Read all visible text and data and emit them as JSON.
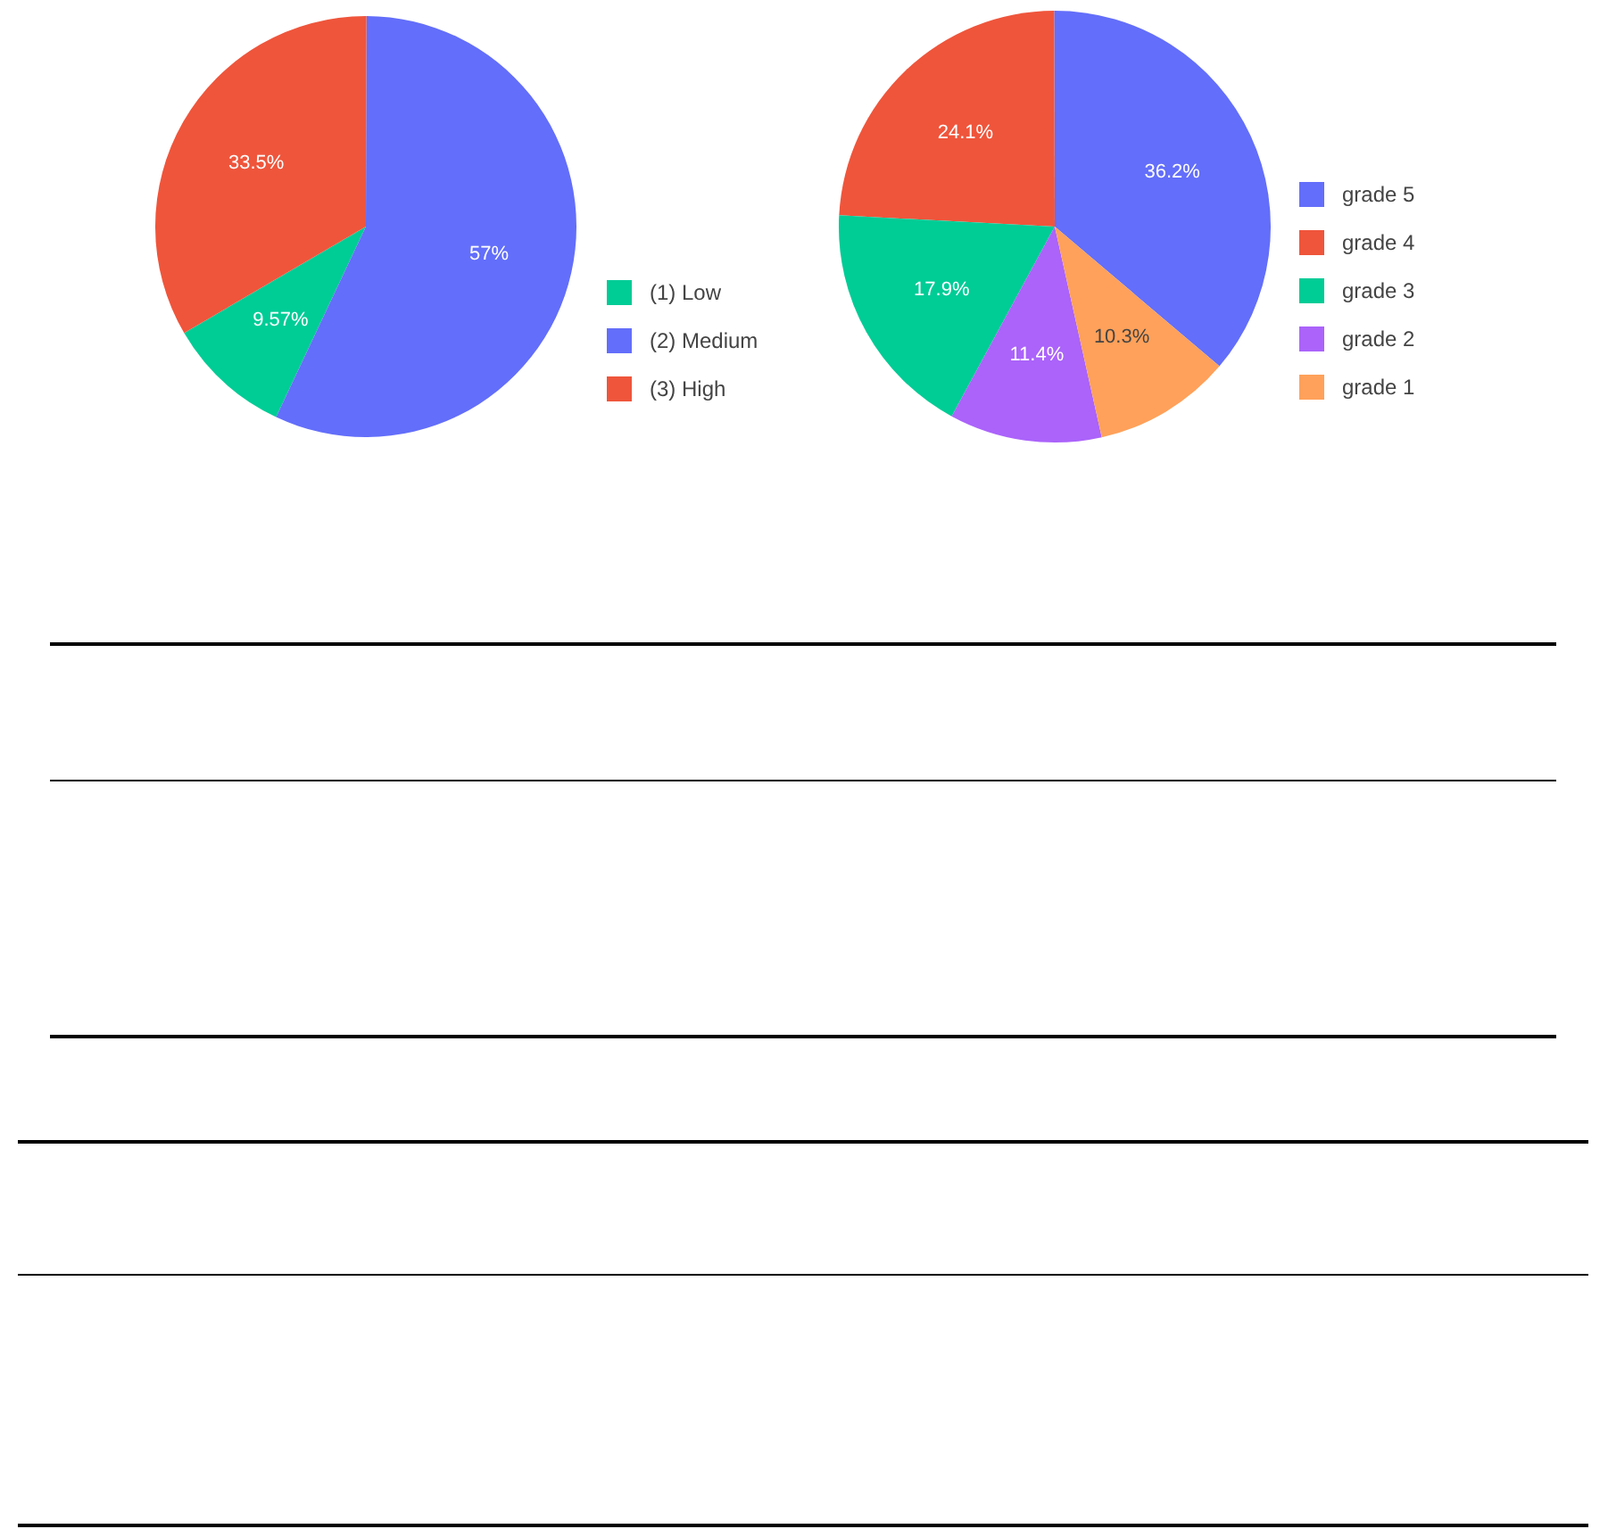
{
  "chart_data": [
    {
      "type": "pie",
      "categories": [
        "(1) Low",
        "(2) Medium",
        "(3) High"
      ],
      "values": [
        9.57,
        57,
        33.5
      ],
      "colors": [
        "#00cc96",
        "#636efa",
        "#ef553b"
      ],
      "value_labels": [
        "9.57%",
        "57%",
        "33.5%"
      ],
      "legend": "right"
    },
    {
      "type": "pie",
      "categories": [
        "grade 5",
        "grade 4",
        "grade 3",
        "grade 2",
        "grade 1"
      ],
      "values": [
        36.2,
        24.1,
        17.9,
        11.4,
        10.3
      ],
      "colors": [
        "#636efa",
        "#ef553b",
        "#00cc96",
        "#ab63fa",
        "#ffa15a"
      ],
      "value_labels": [
        "36.2%",
        "24.1%",
        "17.9%",
        "11.4%",
        "10.3%"
      ],
      "legend": "right"
    }
  ]
}
